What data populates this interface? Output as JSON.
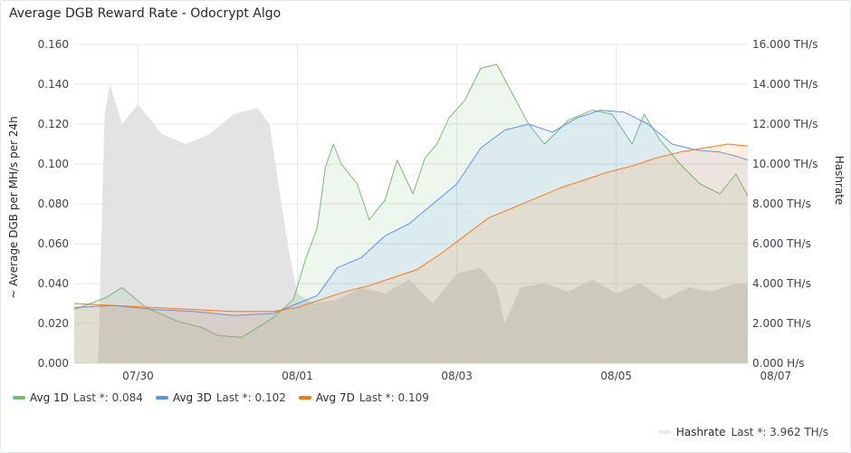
{
  "panel": {
    "title": "Average DGB Reward Rate - Odocrypt Algo"
  },
  "colors": {
    "avg1d": "#73bf69",
    "avg3d": "#5794f2",
    "avg7d": "#ff780a",
    "hashrate": "#e5e5e5"
  },
  "legend": {
    "items": [
      {
        "name": "Avg 1D",
        "last": "Last *: 0.084"
      },
      {
        "name": "Avg 3D",
        "last": "Last *: 0.102"
      },
      {
        "name": "Avg 7D",
        "last": "Last *: 0.109"
      }
    ],
    "hashrate": {
      "name": "Hashrate",
      "last": "Last *: 3.962 TH/s"
    }
  },
  "chart_data": {
    "type": "line",
    "ylabel": "~ Average DGB per MH/s per 24h",
    "y2label": "Hashrate",
    "ylim": [
      0,
      0.16
    ],
    "y2lim": [
      0,
      16
    ],
    "yticks": [
      "0.000",
      "0.020",
      "0.040",
      "0.060",
      "0.080",
      "0.100",
      "0.120",
      "0.140",
      "0.160"
    ],
    "y2ticks": [
      "0.000 H/s",
      "2.000 TH/s",
      "4.000 TH/s",
      "6.000 TH/s",
      "8.000 TH/s",
      "10.000 TH/s",
      "12.000 TH/s",
      "14.000 TH/s",
      "16.000 TH/s"
    ],
    "xlim": [
      -0.3,
      8.15
    ],
    "xticks": [
      {
        "label": "07/30",
        "x": 0.5
      },
      {
        "label": "08/01",
        "x": 2.5
      },
      {
        "label": "08/03",
        "x": 4.5
      },
      {
        "label": "08/05",
        "x": 6.5
      },
      {
        "label": "08/07",
        "x": 8.5
      }
    ],
    "grid": true,
    "legend_position": "bottom",
    "series": [
      {
        "name": "Avg 1D",
        "axis": "left",
        "x": [
          -0.3,
          -0.1,
          0.1,
          0.3,
          0.6,
          1.0,
          1.3,
          1.5,
          1.8,
          2.0,
          2.2,
          2.45,
          2.6,
          2.75,
          2.85,
          2.95,
          3.05,
          3.25,
          3.4,
          3.6,
          3.75,
          3.95,
          4.1,
          4.25,
          4.4,
          4.6,
          4.8,
          5.0,
          5.2,
          5.4,
          5.6,
          5.9,
          6.2,
          6.45,
          6.7,
          6.85,
          7.05,
          7.3,
          7.55,
          7.8,
          8.0,
          8.15
        ],
        "values": [
          0.027,
          0.03,
          0.033,
          0.038,
          0.028,
          0.021,
          0.018,
          0.014,
          0.013,
          0.018,
          0.023,
          0.032,
          0.052,
          0.068,
          0.098,
          0.11,
          0.1,
          0.09,
          0.072,
          0.082,
          0.102,
          0.085,
          0.103,
          0.11,
          0.123,
          0.132,
          0.148,
          0.15,
          0.135,
          0.12,
          0.11,
          0.122,
          0.127,
          0.125,
          0.11,
          0.125,
          0.112,
          0.1,
          0.09,
          0.085,
          0.095,
          0.084
        ]
      },
      {
        "name": "Avg 3D",
        "axis": "left",
        "x": [
          -0.3,
          0.2,
          0.7,
          1.2,
          1.7,
          2.2,
          2.5,
          2.75,
          3.0,
          3.3,
          3.6,
          3.9,
          4.2,
          4.5,
          4.8,
          5.1,
          5.4,
          5.7,
          6.0,
          6.3,
          6.6,
          6.9,
          7.2,
          7.5,
          7.8,
          8.0,
          8.15
        ],
        "values": [
          0.028,
          0.029,
          0.027,
          0.026,
          0.024,
          0.025,
          0.03,
          0.034,
          0.048,
          0.053,
          0.064,
          0.07,
          0.08,
          0.09,
          0.108,
          0.117,
          0.12,
          0.116,
          0.123,
          0.127,
          0.126,
          0.12,
          0.11,
          0.107,
          0.106,
          0.104,
          0.102
        ]
      },
      {
        "name": "Avg 7D",
        "axis": "left",
        "x": [
          -0.3,
          0.2,
          0.7,
          1.2,
          1.7,
          2.2,
          2.5,
          2.8,
          3.1,
          3.4,
          3.7,
          4.0,
          4.3,
          4.6,
          4.9,
          5.2,
          5.5,
          5.8,
          6.1,
          6.4,
          6.7,
          7.0,
          7.3,
          7.6,
          7.9,
          8.15
        ],
        "values": [
          0.03,
          0.029,
          0.028,
          0.027,
          0.026,
          0.026,
          0.028,
          0.032,
          0.036,
          0.039,
          0.043,
          0.047,
          0.055,
          0.064,
          0.073,
          0.078,
          0.083,
          0.088,
          0.092,
          0.096,
          0.099,
          0.103,
          0.106,
          0.108,
          0.11,
          0.109
        ]
      },
      {
        "name": "Hashrate",
        "axis": "right",
        "x": [
          -0.3,
          -0.15,
          0.0,
          0.08,
          0.15,
          0.3,
          0.5,
          0.8,
          1.1,
          1.4,
          1.7,
          2.0,
          2.15,
          2.3,
          2.4,
          2.5,
          2.7,
          3.0,
          3.3,
          3.6,
          3.9,
          4.2,
          4.5,
          4.8,
          5.0,
          5.1,
          5.3,
          5.6,
          5.9,
          6.2,
          6.5,
          6.8,
          7.1,
          7.4,
          7.7,
          8.0,
          8.15
        ],
        "values": [
          0.0,
          0.0,
          0.0,
          12.5,
          14.0,
          12.0,
          13.0,
          11.5,
          11.0,
          11.5,
          12.5,
          12.8,
          12.0,
          8.0,
          5.5,
          3.5,
          3.0,
          3.2,
          3.8,
          3.5,
          4.2,
          3.0,
          4.5,
          4.8,
          3.8,
          2.0,
          3.8,
          4.0,
          3.6,
          4.2,
          3.5,
          4.0,
          3.2,
          3.8,
          3.6,
          4.0,
          3.962
        ]
      }
    ]
  }
}
